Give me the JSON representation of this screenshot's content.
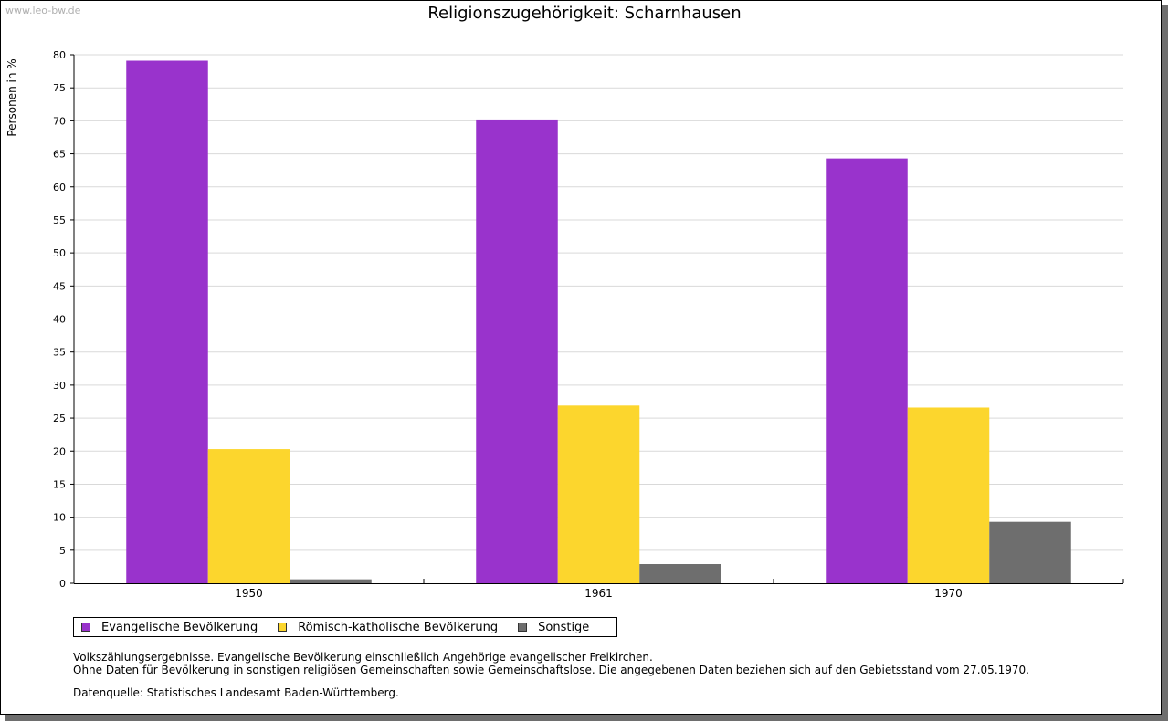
{
  "watermark": "www.leo-bw.de",
  "chart_data": {
    "type": "bar",
    "title": "Religionszugehörigkeit: Scharnhausen",
    "ylabel": "Personen in %",
    "xlabel": "",
    "categories": [
      "1950",
      "1961",
      "1970"
    ],
    "ylim": [
      0,
      80
    ],
    "yticks": [
      0,
      5,
      10,
      15,
      20,
      25,
      30,
      35,
      40,
      45,
      50,
      55,
      60,
      65,
      70,
      75,
      80
    ],
    "grid": true,
    "legend_position": "bottom",
    "series": [
      {
        "name": "Evangelische Bevölkerung",
        "color": "#9933cc",
        "values": [
          79.1,
          70.2,
          64.3
        ]
      },
      {
        "name": "Römisch-katholische Bevölkerung",
        "color": "#fcd62d",
        "values": [
          20.3,
          26.9,
          26.6
        ]
      },
      {
        "name": "Sonstige",
        "color": "#6e6e6e",
        "values": [
          0.6,
          2.9,
          9.3
        ]
      }
    ]
  },
  "notes": [
    "Volkszählungsergebnisse. Evangelische Bevölkerung einschließlich Angehörige evangelischer Freikirchen.",
    "Ohne Daten für Bevölkerung in sonstigen religiösen Gemeinschaften sowie Gemeinschaftslose. Die angegebenen Daten beziehen sich auf den Gebietsstand vom 27.05.1970."
  ],
  "source": "Datenquelle: Statistisches Landesamt Baden-Württemberg."
}
